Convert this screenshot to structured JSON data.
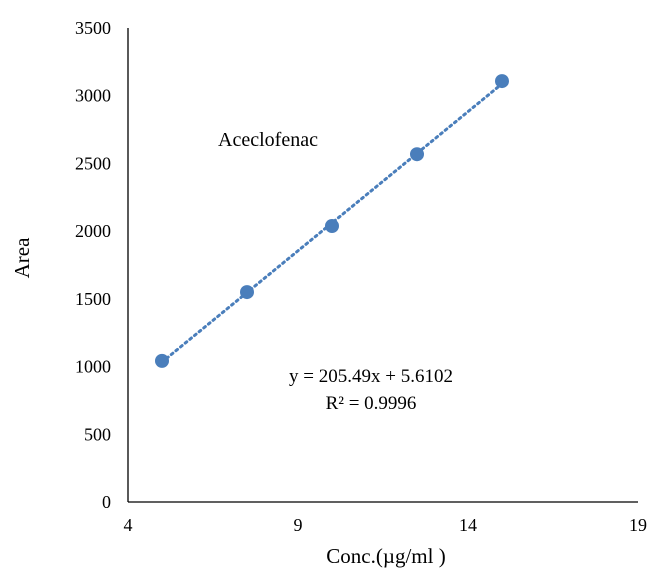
{
  "chart_data": {
    "type": "scatter",
    "x": [
      5,
      7.5,
      10,
      12.5,
      15
    ],
    "y": [
      1042,
      1550,
      2038,
      2568,
      3108
    ],
    "series": [
      {
        "x": [
          5,
          7.5,
          10,
          12.5,
          15
        ],
        "y": [
          1042,
          1550,
          2038,
          2568,
          3108
        ]
      }
    ],
    "title": "",
    "annotation": "Aceclofenac",
    "xlabel": "Conc.(µg/ml )",
    "ylabel": "Area",
    "xlim": [
      4,
      19
    ],
    "ylim": [
      0,
      3500
    ],
    "x_ticks": [
      4,
      9,
      14,
      19
    ],
    "y_ticks": [
      0,
      500,
      1000,
      1500,
      2000,
      2500,
      3000,
      3500
    ],
    "trendline": {
      "type": "linear",
      "slope": 205.49,
      "intercept": 5.6102,
      "style": "dotted",
      "x_range": [
        5,
        15
      ]
    },
    "equation_text": "y = 205.49x + 5.6102",
    "r2_text": "R² = 0.9996",
    "grid": false,
    "legend": "none"
  },
  "colors": {
    "marker": "#4a7ebb",
    "trendline": "#4a7ebb",
    "axis": "#000000"
  }
}
